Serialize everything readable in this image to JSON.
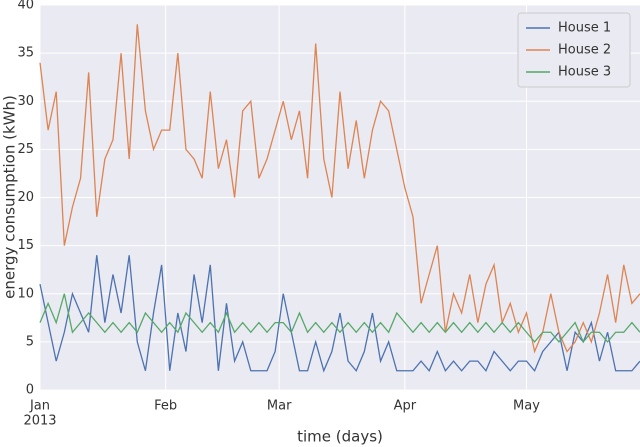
{
  "chart_data": {
    "type": "line",
    "xlabel": "time (days)",
    "ylabel": "energy consumption (kWh)",
    "year_label": "2013",
    "x": [
      "2013-01-01",
      "2013-01-03",
      "2013-01-05",
      "2013-01-07",
      "2013-01-09",
      "2013-01-11",
      "2013-01-13",
      "2013-01-15",
      "2013-01-17",
      "2013-01-19",
      "2013-01-21",
      "2013-01-23",
      "2013-01-25",
      "2013-01-27",
      "2013-01-29",
      "2013-01-31",
      "2013-02-02",
      "2013-02-04",
      "2013-02-06",
      "2013-02-08",
      "2013-02-10",
      "2013-02-12",
      "2013-02-14",
      "2013-02-16",
      "2013-02-18",
      "2013-02-20",
      "2013-02-22",
      "2013-02-24",
      "2013-02-26",
      "2013-02-28",
      "2013-03-02",
      "2013-03-04",
      "2013-03-06",
      "2013-03-08",
      "2013-03-10",
      "2013-03-12",
      "2013-03-14",
      "2013-03-16",
      "2013-03-18",
      "2013-03-20",
      "2013-03-22",
      "2013-03-24",
      "2013-03-26",
      "2013-03-28",
      "2013-03-30",
      "2013-04-01",
      "2013-04-03",
      "2013-04-05",
      "2013-04-07",
      "2013-04-09",
      "2013-04-11",
      "2013-04-13",
      "2013-04-15",
      "2013-04-17",
      "2013-04-19",
      "2013-04-21",
      "2013-04-23",
      "2013-04-25",
      "2013-04-27",
      "2013-04-29",
      "2013-05-01",
      "2013-05-03",
      "2013-05-05",
      "2013-05-07",
      "2013-05-09",
      "2013-05-11",
      "2013-05-13",
      "2013-05-15",
      "2013-05-17",
      "2013-05-19",
      "2013-05-21",
      "2013-05-23",
      "2013-05-25",
      "2013-05-27",
      "2013-05-29"
    ],
    "series": [
      {
        "name": "House 1",
        "color": "#4c72b0",
        "values": [
          11,
          7,
          3,
          6,
          10,
          8,
          6,
          14,
          7,
          12,
          8,
          14,
          5,
          2,
          8,
          13,
          2,
          8,
          4,
          12,
          7,
          13,
          2,
          9,
          3,
          5,
          2,
          2,
          2,
          4,
          10,
          6,
          2,
          2,
          5,
          2,
          4,
          8,
          3,
          2,
          4,
          8,
          3,
          5,
          2,
          2,
          2,
          3,
          2,
          4,
          2,
          3,
          2,
          3,
          3,
          2,
          4,
          3,
          2,
          3,
          3,
          2,
          4,
          5,
          6,
          2,
          6,
          5,
          7,
          3,
          6,
          2,
          2,
          2,
          3
        ]
      },
      {
        "name": "House 2",
        "color": "#dd8452",
        "values": [
          34,
          27,
          31,
          15,
          19,
          22,
          33,
          18,
          24,
          26,
          35,
          24,
          38,
          29,
          25,
          27,
          27,
          35,
          25,
          24,
          22,
          31,
          23,
          26,
          20,
          29,
          30,
          22,
          24,
          27,
          30,
          26,
          29,
          22,
          36,
          24,
          20,
          31,
          23,
          28,
          22,
          27,
          30,
          29,
          25,
          21,
          18,
          9,
          12,
          15,
          6,
          10,
          8,
          12,
          7,
          11,
          13,
          7,
          9,
          6,
          8,
          4,
          6,
          10,
          6,
          4,
          5,
          7,
          5,
          8,
          12,
          7,
          13,
          9,
          10
        ]
      },
      {
        "name": "House 3",
        "color": "#55a868",
        "values": [
          7,
          9,
          7,
          10,
          6,
          7,
          8,
          7,
          6,
          7,
          6,
          7,
          6,
          8,
          7,
          6,
          7,
          6,
          8,
          7,
          6,
          7,
          6,
          8,
          6,
          7,
          6,
          7,
          6,
          7,
          7,
          6,
          8,
          6,
          7,
          6,
          7,
          6,
          7,
          6,
          7,
          6,
          7,
          6,
          8,
          7,
          6,
          7,
          6,
          7,
          6,
          7,
          6,
          7,
          6,
          7,
          6,
          7,
          6,
          7,
          6,
          5,
          6,
          6,
          5,
          6,
          7,
          5,
          6,
          6,
          5,
          6,
          6,
          7,
          6
        ]
      }
    ],
    "xlim": [
      "2013-01-01",
      "2013-05-29"
    ],
    "xticks": [
      {
        "value": "2013-01-01",
        "label": "Jan"
      },
      {
        "value": "2013-02-01",
        "label": "Feb"
      },
      {
        "value": "2013-03-01",
        "label": "Mar"
      },
      {
        "value": "2013-04-01",
        "label": "Apr"
      },
      {
        "value": "2013-05-01",
        "label": "May"
      }
    ],
    "ylim": [
      0,
      40
    ],
    "yticks": [
      0,
      5,
      10,
      15,
      20,
      25,
      30,
      35,
      40
    ],
    "grid": true,
    "legend": "upper right"
  }
}
